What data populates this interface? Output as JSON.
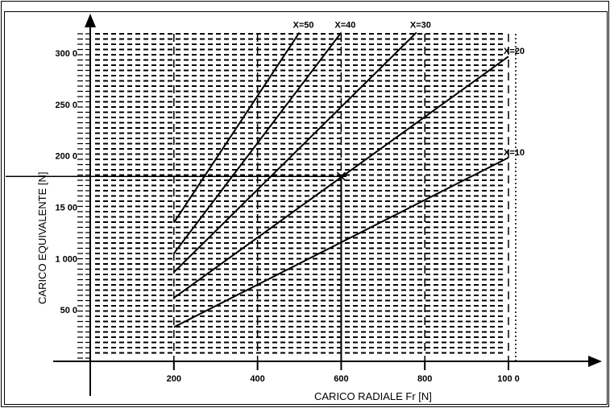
{
  "chart_data": {
    "type": "line",
    "xlabel": "CARICO RADIALE Fr [N]",
    "ylabel": "CARICO EQUIVALENTE [N]",
    "xlim": [
      0,
      1000
    ],
    "ylim": [
      0,
      3000
    ],
    "xticks": [
      {
        "value": 200,
        "label": "200"
      },
      {
        "value": 400,
        "label": "400"
      },
      {
        "value": 600,
        "label": "600"
      },
      {
        "value": 800,
        "label": "800"
      },
      {
        "value": 1000,
        "label": "100 0"
      }
    ],
    "yticks": [
      {
        "value": 500,
        "label": "50 0"
      },
      {
        "value": 1000,
        "label": "1 000"
      },
      {
        "value": 1500,
        "label": "15 00"
      },
      {
        "value": 2000,
        "label": "200 0"
      },
      {
        "value": 2500,
        "label": "250 0"
      },
      {
        "value": 3000,
        "label": "300 0"
      }
    ],
    "series": [
      {
        "name": "X=10",
        "points": [
          [
            200,
            333
          ],
          [
            1000,
            1983
          ]
        ]
      },
      {
        "name": "X=20",
        "points": [
          [
            200,
            617
          ],
          [
            1000,
            2967
          ]
        ]
      },
      {
        "name": "X=30",
        "points": [
          [
            200,
            867
          ],
          [
            780,
            3200
          ]
        ]
      },
      {
        "name": "X=40",
        "points": [
          [
            200,
            1050
          ],
          [
            600,
            3200
          ]
        ]
      },
      {
        "name": "X=50",
        "points": [
          [
            200,
            1350
          ],
          [
            500,
            3200
          ]
        ]
      }
    ],
    "marker": {
      "x": 600,
      "y": 1800
    },
    "grid": "dashed horizontal lines; dashed vertical lines at 200, 400, 600, 800, 1000"
  }
}
